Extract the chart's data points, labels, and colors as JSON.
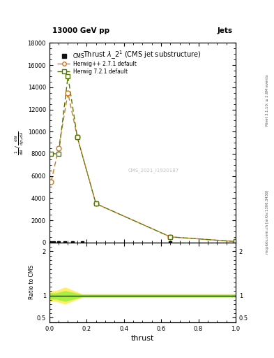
{
  "title": "Thrust $\\lambda\\_2^1$ (CMS jet substructure)",
  "header_left": "13000 GeV pp",
  "header_right": "Jets",
  "watermark": "CMS_2021_I1920187",
  "right_label": "mcplots.cern.ch [arXiv:1306.3436]",
  "rivet_label": "Rivet 3.1.10; ≥ 2.6M events",
  "xlabel": "thrust",
  "ratio_ylabel": "Ratio to CMS",
  "herwig_pp_x": [
    0.01,
    0.05,
    0.1,
    0.15,
    0.25,
    0.65,
    1.0
  ],
  "herwig_pp_y": [
    5500,
    8500,
    13500,
    9500,
    3500,
    500,
    80
  ],
  "herwig72_x": [
    0.01,
    0.05,
    0.1,
    0.15,
    0.25,
    0.65,
    1.0
  ],
  "herwig72_y": [
    8000,
    8000,
    15000,
    9500,
    3500,
    500,
    80
  ],
  "cms_x": [
    0.005,
    0.025,
    0.05,
    0.085,
    0.125,
    0.175,
    0.65
  ],
  "cms_y": [
    0,
    0,
    0,
    0,
    0,
    0,
    0
  ],
  "ylim": [
    0,
    18000
  ],
  "yticks": [
    0,
    2000,
    4000,
    6000,
    8000,
    10000,
    12000,
    14000,
    16000,
    18000
  ],
  "xlim": [
    0,
    1.0
  ],
  "ratio_ylim": [
    0.4,
    2.2
  ],
  "ratio_yticks": [
    0.5,
    1.0,
    2.0
  ],
  "cms_color": "#111111",
  "herwig_pp_color": "#cc7722",
  "herwig72_color": "#557700",
  "ratio_band_color_72": "#aaee44",
  "ratio_band_color_pp": "#ffee66",
  "bg_color": "#ffffff",
  "ratio_herwig_pp_x": [
    0.0,
    0.035,
    0.035,
    0.085,
    0.085,
    0.175,
    0.175,
    1.0
  ],
  "ratio_herwig_pp_lo": [
    0.88,
    0.88,
    0.88,
    0.82,
    0.82,
    0.97,
    0.97,
    0.97
  ],
  "ratio_herwig_pp_hi": [
    1.1,
    1.1,
    1.1,
    1.18,
    1.18,
    1.03,
    1.03,
    1.03
  ],
  "ratio_herwig72_x": [
    0.0,
    0.035,
    0.035,
    0.085,
    0.085,
    0.175,
    0.175,
    1.0
  ],
  "ratio_herwig72_lo": [
    0.93,
    0.93,
    0.93,
    0.88,
    0.88,
    0.98,
    0.98,
    0.98
  ],
  "ratio_herwig72_hi": [
    1.05,
    1.05,
    1.05,
    1.1,
    1.1,
    1.02,
    1.02,
    1.02
  ]
}
